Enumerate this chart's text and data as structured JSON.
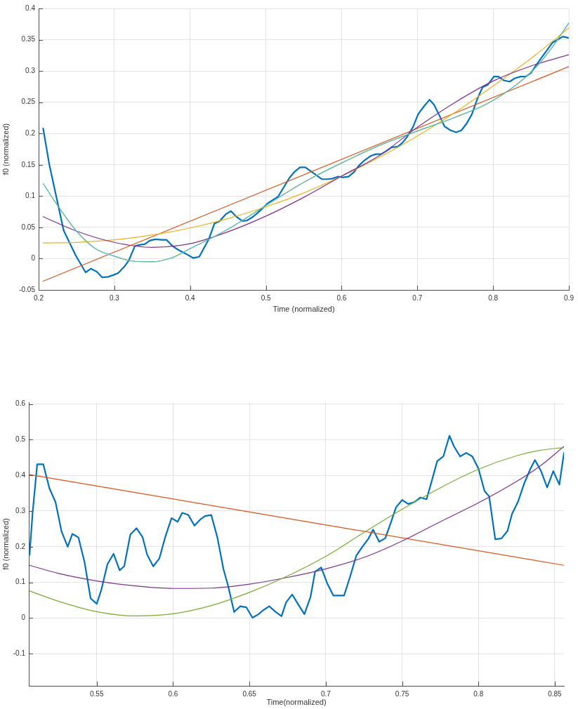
{
  "chart_data": [
    {
      "type": "line",
      "xlabel": "Time (normalized)",
      "ylabel": "f0 (normalized)",
      "xlim": [
        0.2,
        0.9
      ],
      "ylim": [
        -0.05,
        0.4
      ],
      "xticks": [
        0.2,
        0.3,
        0.4,
        0.5,
        0.6,
        0.7,
        0.8,
        0.9
      ],
      "yticks": [
        -0.05,
        0,
        0.05,
        0.1,
        0.15,
        0.2,
        0.25,
        0.3,
        0.35,
        0.4
      ],
      "grid": true,
      "series": [
        {
          "color": "#0072bd",
          "x": [
            0.206,
            0.214,
            0.233,
            0.249,
            0.262,
            0.269,
            0.277,
            0.284,
            0.292,
            0.299,
            0.305,
            0.313,
            0.319,
            0.327,
            0.333,
            0.34,
            0.347,
            0.354,
            0.362,
            0.369,
            0.376,
            0.383,
            0.397,
            0.404,
            0.412,
            0.425,
            0.432,
            0.439,
            0.447,
            0.454,
            0.461,
            0.469,
            0.475,
            0.483,
            0.489,
            0.503,
            0.516,
            0.524,
            0.531,
            0.538,
            0.545,
            0.552,
            0.559,
            0.567,
            0.574,
            0.581,
            0.588,
            0.595,
            0.602,
            0.609,
            0.616,
            0.623,
            0.63,
            0.638,
            0.645,
            0.652,
            0.659,
            0.666,
            0.674,
            0.68,
            0.686,
            0.694,
            0.701,
            0.709,
            0.716,
            0.722,
            0.729,
            0.736,
            0.744,
            0.751,
            0.758,
            0.765,
            0.772,
            0.779,
            0.786,
            0.793,
            0.801,
            0.807,
            0.814,
            0.822,
            0.828,
            0.836,
            0.843,
            0.85,
            0.856,
            0.863,
            0.871,
            0.878,
            0.885,
            0.892,
            0.899
          ],
          "values": [
            0.208,
            0.151,
            0.045,
            0.005,
            -0.022,
            -0.016,
            -0.021,
            -0.03,
            -0.029,
            -0.026,
            -0.023,
            -0.013,
            -0.003,
            0.02,
            0.022,
            0.023,
            0.029,
            0.031,
            0.03,
            0.03,
            0.021,
            0.015,
            0.006,
            0.001,
            0.003,
            0.032,
            0.056,
            0.06,
            0.071,
            0.076,
            0.067,
            0.06,
            0.061,
            0.067,
            0.073,
            0.089,
            0.099,
            0.115,
            0.129,
            0.139,
            0.146,
            0.146,
            0.14,
            0.133,
            0.127,
            0.127,
            0.128,
            0.131,
            0.13,
            0.131,
            0.138,
            0.149,
            0.157,
            0.164,
            0.167,
            0.167,
            0.172,
            0.178,
            0.179,
            0.185,
            0.194,
            0.21,
            0.231,
            0.244,
            0.254,
            0.246,
            0.229,
            0.211,
            0.205,
            0.202,
            0.205,
            0.216,
            0.231,
            0.255,
            0.274,
            0.278,
            0.291,
            0.291,
            0.285,
            0.283,
            0.288,
            0.291,
            0.291,
            0.297,
            0.308,
            0.32,
            0.333,
            0.345,
            0.35,
            0.355,
            0.353
          ]
        },
        {
          "color": "#d95319",
          "x": [
            0.206,
            0.9
          ],
          "values": [
            -0.036,
            0.307
          ]
        },
        {
          "color": "#edb120",
          "x": [
            0.206,
            0.25,
            0.3,
            0.35,
            0.4,
            0.45,
            0.5,
            0.55,
            0.6,
            0.65,
            0.7,
            0.75,
            0.8,
            0.85,
            0.9
          ],
          "values": [
            0.025,
            0.026,
            0.03,
            0.038,
            0.049,
            0.064,
            0.083,
            0.105,
            0.132,
            0.162,
            0.196,
            0.234,
            0.276,
            0.32,
            0.369
          ]
        },
        {
          "color": "#7e2f8e",
          "x": [
            0.206,
            0.25,
            0.3,
            0.35,
            0.4,
            0.45,
            0.5,
            0.55,
            0.6,
            0.65,
            0.7,
            0.75,
            0.8,
            0.85,
            0.9
          ],
          "values": [
            0.067,
            0.044,
            0.026,
            0.018,
            0.024,
            0.043,
            0.068,
            0.098,
            0.132,
            0.165,
            0.21,
            0.25,
            0.284,
            0.308,
            0.326
          ]
        },
        {
          "color": "#77ac30",
          "x": [
            0.206,
            0.225,
            0.25,
            0.275,
            0.3,
            0.325,
            0.35,
            0.375,
            0.4,
            0.45,
            0.5,
            0.55,
            0.6,
            0.65,
            0.7,
            0.75,
            0.8,
            0.85,
            0.875,
            0.9
          ],
          "values": [
            0.12,
            0.085,
            0.044,
            0.016,
            0.004,
            -0.004,
            -0.005,
            0.001,
            0.016,
            0.047,
            0.085,
            0.122,
            0.153,
            0.181,
            0.204,
            0.226,
            0.253,
            0.298,
            0.333,
            0.377
          ]
        },
        {
          "color": "#4dbeee",
          "line_style": "dotted",
          "x": [
            0.206,
            0.225,
            0.25,
            0.275,
            0.3,
            0.325,
            0.35,
            0.375,
            0.4,
            0.45,
            0.5,
            0.55,
            0.6,
            0.65,
            0.7,
            0.75,
            0.8,
            0.85,
            0.875,
            0.9
          ],
          "values": [
            0.12,
            0.085,
            0.044,
            0.016,
            0.004,
            -0.004,
            -0.005,
            0.001,
            0.016,
            0.047,
            0.085,
            0.122,
            0.153,
            0.181,
            0.204,
            0.226,
            0.253,
            0.298,
            0.333,
            0.377
          ]
        }
      ]
    },
    {
      "type": "line",
      "xlabel": "Time(normalized)",
      "ylabel": "f0 (normalized)",
      "xlim": [
        0.5055,
        0.856
      ],
      "ylim": [
        -0.19,
        0.605
      ],
      "xticks": [
        0.55,
        0.6,
        0.65,
        0.7,
        0.75,
        0.8,
        0.85
      ],
      "yticks": [
        -0.1,
        0,
        0.1,
        0.2,
        0.3,
        0.4,
        0.5,
        0.6
      ],
      "grid": true,
      "series": [
        {
          "color": "#0072bd",
          "x": [
            0.506,
            0.508,
            0.511,
            0.515,
            0.519,
            0.523,
            0.527,
            0.531,
            0.534,
            0.538,
            0.542,
            0.546,
            0.55,
            0.553,
            0.557,
            0.561,
            0.565,
            0.568,
            0.572,
            0.576,
            0.58,
            0.583,
            0.587,
            0.591,
            0.595,
            0.599,
            0.603,
            0.606,
            0.61,
            0.614,
            0.618,
            0.621,
            0.625,
            0.629,
            0.633,
            0.636,
            0.64,
            0.644,
            0.648,
            0.652,
            0.656,
            0.659,
            0.663,
            0.667,
            0.671,
            0.674,
            0.678,
            0.682,
            0.686,
            0.69,
            0.693,
            0.697,
            0.701,
            0.705,
            0.708,
            0.712,
            0.716,
            0.72,
            0.724,
            0.728,
            0.731,
            0.735,
            0.739,
            0.743,
            0.746,
            0.75,
            0.754,
            0.758,
            0.762,
            0.766,
            0.769,
            0.773,
            0.777,
            0.781,
            0.784,
            0.788,
            0.792,
            0.796,
            0.8,
            0.804,
            0.807,
            0.811,
            0.815,
            0.819,
            0.822,
            0.826,
            0.83,
            0.834,
            0.837,
            0.841,
            0.845,
            0.849,
            0.853,
            0.856
          ],
          "values": [
            0.177,
            0.295,
            0.431,
            0.431,
            0.364,
            0.325,
            0.242,
            0.2,
            0.236,
            0.226,
            0.157,
            0.055,
            0.04,
            0.079,
            0.151,
            0.18,
            0.134,
            0.145,
            0.234,
            0.252,
            0.227,
            0.178,
            0.145,
            0.167,
            0.229,
            0.28,
            0.27,
            0.295,
            0.289,
            0.259,
            0.277,
            0.286,
            0.289,
            0.226,
            0.137,
            0.091,
            0.017,
            0.033,
            0.03,
            0.001,
            0.011,
            0.022,
            0.033,
            0.018,
            0.005,
            0.044,
            0.066,
            0.038,
            0.011,
            0.059,
            0.13,
            0.142,
            0.097,
            0.063,
            0.063,
            0.063,
            0.117,
            0.175,
            0.2,
            0.223,
            0.248,
            0.214,
            0.224,
            0.272,
            0.31,
            0.331,
            0.32,
            0.325,
            0.338,
            0.333,
            0.378,
            0.44,
            0.453,
            0.511,
            0.481,
            0.453,
            0.463,
            0.453,
            0.419,
            0.356,
            0.341,
            0.221,
            0.223,
            0.244,
            0.292,
            0.327,
            0.378,
            0.418,
            0.443,
            0.412,
            0.366,
            0.412,
            0.374,
            0.463
          ]
        },
        {
          "color": "#d95319",
          "x": [
            0.506,
            0.856
          ],
          "values": [
            0.402,
            0.148
          ]
        },
        {
          "color": "#7e2f8e",
          "x": [
            0.506,
            0.525,
            0.55,
            0.575,
            0.6,
            0.625,
            0.65,
            0.675,
            0.7,
            0.725,
            0.75,
            0.775,
            0.8,
            0.825,
            0.84,
            0.856
          ],
          "values": [
            0.148,
            0.125,
            0.104,
            0.09,
            0.083,
            0.084,
            0.095,
            0.114,
            0.138,
            0.17,
            0.216,
            0.27,
            0.323,
            0.383,
            0.425,
            0.481
          ]
        },
        {
          "color": "#77ac30",
          "x": [
            0.506,
            0.525,
            0.55,
            0.575,
            0.6,
            0.625,
            0.65,
            0.675,
            0.7,
            0.725,
            0.75,
            0.775,
            0.8,
            0.825,
            0.84,
            0.856
          ],
          "values": [
            0.076,
            0.047,
            0.018,
            0.006,
            0.012,
            0.035,
            0.072,
            0.118,
            0.173,
            0.24,
            0.305,
            0.365,
            0.417,
            0.455,
            0.47,
            0.478
          ]
        }
      ]
    }
  ]
}
